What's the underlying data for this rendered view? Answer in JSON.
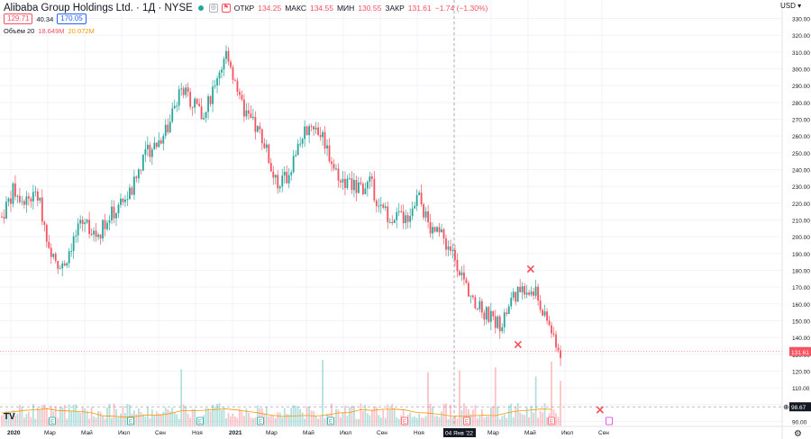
{
  "header": {
    "symbol_title": "Alibaba Group Holdings Ltd. · 1Д · NYSE",
    "open_label": "ОТКР",
    "open_value": "134.25",
    "high_label": "МАКС",
    "high_value": "134.55",
    "low_label": "МИН",
    "low_value": "130.55",
    "close_label": "ЗАКР",
    "close_value": "131.61",
    "change": "−1.74 (−1.30%)",
    "bid": "129.71",
    "spread": "40.34",
    "ask": "170.05",
    "volume_label": "Объём 20",
    "volume_value": "18.649M",
    "volume_ma": "20.072M",
    "currency": "USD"
  },
  "colors": {
    "up": "#26a69a",
    "down": "#f7525f",
    "volume_ma": "#ff9800",
    "grid": "#f0f3fa"
  },
  "chart_data": {
    "type": "candlestick",
    "title": "Alibaba Group Holdings Ltd. · 1Д · NYSE",
    "y_ticks": [
      90,
      100,
      110,
      120,
      130,
      140,
      150,
      160,
      170,
      180,
      190,
      200,
      210,
      220,
      230,
      240,
      250,
      260,
      270,
      280,
      290,
      300,
      310,
      320,
      330
    ],
    "y_tick_labels": [
      "90.00",
      "100.00",
      "110.00",
      "120.00",
      "130.00",
      "140.00",
      "150.00",
      "160.00",
      "170.00",
      "180.00",
      "190.00",
      "200.00",
      "210.00",
      "220.00",
      "230.00",
      "240.00",
      "250.00",
      "260.00",
      "270.00",
      "280.00",
      "290.00",
      "300.00",
      "310.00",
      "320.00",
      "330.00"
    ],
    "ylim": [
      87,
      341
    ],
    "x_tick_labels": [
      "2020",
      "Мар",
      "Май",
      "Июл",
      "Сен",
      "Ноя",
      "2021",
      "Мар",
      "Май",
      "Июл",
      "Сен",
      "Ноя",
      "04 Янв '22",
      "Мар",
      "Май",
      "Июл",
      "Сен"
    ],
    "x_tick_dates": [
      "2020-01",
      "2020-03",
      "2020-05",
      "2020-07",
      "2020-09",
      "2020-11",
      "2021-01",
      "2021-03",
      "2021-05",
      "2021-07",
      "2021-09",
      "2021-11",
      "2022-01-04",
      "2022-03",
      "2022-05",
      "2022-07",
      "2022-09"
    ],
    "close_series_monthly": [
      {
        "date": "2020-01",
        "close": 212
      },
      {
        "date": "2020-01b",
        "close": 228
      },
      {
        "date": "2020-02",
        "close": 222
      },
      {
        "date": "2020-02b",
        "close": 225
      },
      {
        "date": "2020-03",
        "close": 195
      },
      {
        "date": "2020-03b",
        "close": 180
      },
      {
        "date": "2020-04",
        "close": 198
      },
      {
        "date": "2020-04b",
        "close": 210
      },
      {
        "date": "2020-05",
        "close": 200
      },
      {
        "date": "2020-05b",
        "close": 212
      },
      {
        "date": "2020-06",
        "close": 218
      },
      {
        "date": "2020-06b",
        "close": 228
      },
      {
        "date": "2020-07",
        "close": 250
      },
      {
        "date": "2020-07b",
        "close": 255
      },
      {
        "date": "2020-08",
        "close": 265
      },
      {
        "date": "2020-08b",
        "close": 290
      },
      {
        "date": "2020-09",
        "close": 280
      },
      {
        "date": "2020-09b",
        "close": 270
      },
      {
        "date": "2020-10",
        "close": 295
      },
      {
        "date": "2020-10b",
        "close": 310
      },
      {
        "date": "2020-11",
        "close": 280
      },
      {
        "date": "2020-11b",
        "close": 268
      },
      {
        "date": "2020-12",
        "close": 258
      },
      {
        "date": "2020-12b",
        "close": 232
      },
      {
        "date": "2021-01",
        "close": 235
      },
      {
        "date": "2021-01b",
        "close": 255
      },
      {
        "date": "2021-02",
        "close": 268
      },
      {
        "date": "2021-02b",
        "close": 260
      },
      {
        "date": "2021-03",
        "close": 240
      },
      {
        "date": "2021-03b",
        "close": 232
      },
      {
        "date": "2021-04",
        "close": 228
      },
      {
        "date": "2021-04b",
        "close": 232
      },
      {
        "date": "2021-05",
        "close": 215
      },
      {
        "date": "2021-05b",
        "close": 212
      },
      {
        "date": "2021-06",
        "close": 210
      },
      {
        "date": "2021-06b",
        "close": 225
      },
      {
        "date": "2021-07",
        "close": 205
      },
      {
        "date": "2021-07b",
        "close": 200
      },
      {
        "date": "2021-08",
        "close": 190
      },
      {
        "date": "2021-08b",
        "close": 172
      },
      {
        "date": "2021-09",
        "close": 158
      },
      {
        "date": "2021-09b",
        "close": 152
      },
      {
        "date": "2021-10",
        "close": 148
      },
      {
        "date": "2021-10b",
        "close": 165
      },
      {
        "date": "2021-11",
        "close": 170
      },
      {
        "date": "2021-11b",
        "close": 165
      },
      {
        "date": "2021-12",
        "close": 148
      },
      {
        "date": "2021-12b",
        "close": 131.61
      }
    ],
    "last_price": "131.61",
    "crosshair_price": "98.67",
    "earnings_markers": 11,
    "markers": [
      "×",
      "×",
      "×"
    ]
  }
}
